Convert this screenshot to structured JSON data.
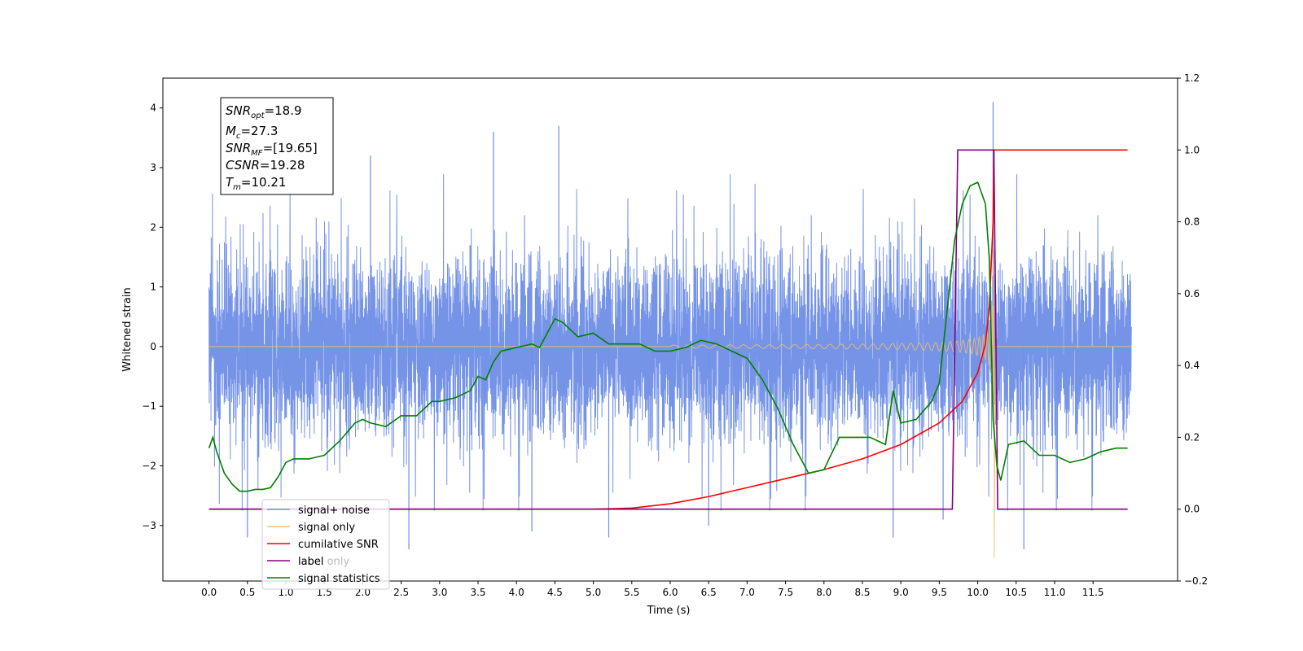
{
  "chart_data": {
    "type": "line",
    "title": "",
    "xlabel": "Time (s)",
    "ylabel_left": "Whitened strain",
    "ylabel_right": "",
    "xlim": [
      -0.6,
      12.6
    ],
    "ylim_left": [
      -3.93,
      4.5
    ],
    "ylim_right": [
      -0.2,
      1.2
    ],
    "x_ticks": [
      0.0,
      0.5,
      1.0,
      1.5,
      2.0,
      2.5,
      3.0,
      3.5,
      4.0,
      4.5,
      5.0,
      5.5,
      6.0,
      6.5,
      7.0,
      7.5,
      8.0,
      8.5,
      9.0,
      9.5,
      10.0,
      10.5,
      11.0,
      11.5
    ],
    "x_tick_labels": [
      "0.0",
      "0.5",
      "1.0",
      "1.5",
      "2.0",
      "2.5",
      "3.0",
      "3.5",
      "4.0",
      "4.5",
      "5.0",
      "5.5",
      "6.0",
      "6.5",
      "7.0",
      "7.5",
      "8.0",
      "8.5",
      "9.0",
      "9.5",
      "10.0",
      "10.5",
      "11.0",
      "11.5"
    ],
    "y_left_ticks": [
      -3,
      -2,
      -1,
      0,
      1,
      2,
      3,
      4
    ],
    "y_left_tick_labels": [
      "−3",
      "−2",
      "−1",
      "0",
      "1",
      "2",
      "3",
      "4"
    ],
    "y_right_ticks": [
      -0.2,
      0.0,
      0.2,
      0.4,
      0.6,
      0.8,
      1.0,
      1.2
    ],
    "y_right_tick_labels": [
      "−0.2",
      "0.0",
      "0.2",
      "0.4",
      "0.6",
      "0.8",
      "1.0",
      "1.2"
    ],
    "grid": false,
    "legend_position": "bottom-left",
    "info_box": {
      "position": "top-left",
      "lines": [
        {
          "base": "SNR",
          "sub": "opt",
          "value": "=18.9"
        },
        {
          "base": "M",
          "sub": "c",
          "value": "=27.3"
        },
        {
          "base": "SNR",
          "sub": "MF",
          "value": "=[19.65]"
        },
        {
          "base": "CSNR",
          "sub": "",
          "value": "=19.28"
        },
        {
          "base": "T",
          "sub": "m",
          "value": "=10.21"
        }
      ]
    },
    "series": [
      {
        "name": "signal+ noise",
        "axis": "left",
        "color": "#6f8ee6",
        "kind": "noise",
        "x_range": [
          0.0,
          12.0
        ],
        "typical_range": [
          -2.0,
          2.0
        ],
        "peak_max": 4.1,
        "peak_min": -3.4,
        "peaks": [
          {
            "x": 0.5,
            "y": -3.2
          },
          {
            "x": 2.1,
            "y": 3.2
          },
          {
            "x": 2.6,
            "y": -3.4
          },
          {
            "x": 3.7,
            "y": 3.6
          },
          {
            "x": 4.2,
            "y": -3.1
          },
          {
            "x": 4.55,
            "y": 3.7
          },
          {
            "x": 5.2,
            "y": -3.2
          },
          {
            "x": 6.5,
            "y": -3.0
          },
          {
            "x": 8.9,
            "y": -3.2
          },
          {
            "x": 9.55,
            "y": -2.9
          },
          {
            "x": 10.2,
            "y": 4.1
          },
          {
            "x": 10.6,
            "y": -3.4
          }
        ]
      },
      {
        "name": "signal only",
        "axis": "left",
        "color": "#f5c06a",
        "kind": "chirp",
        "x_range": [
          0.0,
          12.0
        ],
        "start_x": 6.0,
        "merger_x": 10.21,
        "peak_amplitude": 3.6,
        "peak_min": -3.55
      },
      {
        "name": "cumilative SNR",
        "axis": "right",
        "color": "#ff0000",
        "x": [
          0.0,
          5.0,
          5.5,
          6.0,
          6.5,
          7.0,
          7.5,
          8.0,
          8.5,
          9.0,
          9.5,
          9.8,
          10.0,
          10.1,
          10.15,
          10.2,
          10.21,
          11.95
        ],
        "y": [
          0.0,
          0.0,
          0.003,
          0.015,
          0.035,
          0.06,
          0.085,
          0.11,
          0.14,
          0.18,
          0.24,
          0.3,
          0.38,
          0.46,
          0.56,
          0.8,
          1.0,
          1.0
        ]
      },
      {
        "name": "label",
        "axis": "right",
        "color": "#800080",
        "x": [
          0.0,
          9.67,
          9.74,
          10.21,
          10.26,
          11.95
        ],
        "y": [
          0.0,
          0.0,
          1.0,
          1.0,
          0.0,
          0.0
        ]
      },
      {
        "name": "label only",
        "axis": "right",
        "color": "#bbbbbb",
        "x": [],
        "y": []
      },
      {
        "name": "signal statistics",
        "axis": "right",
        "color": "#008000",
        "x": [
          0.0,
          0.05,
          0.1,
          0.2,
          0.3,
          0.4,
          0.5,
          0.6,
          0.7,
          0.8,
          0.9,
          1.0,
          1.1,
          1.3,
          1.5,
          1.7,
          1.9,
          2.0,
          2.1,
          2.3,
          2.5,
          2.7,
          2.9,
          3.0,
          3.2,
          3.4,
          3.5,
          3.6,
          3.7,
          3.8,
          4.0,
          4.2,
          4.3,
          4.4,
          4.5,
          4.6,
          4.8,
          5.0,
          5.2,
          5.4,
          5.6,
          5.8,
          6.0,
          6.2,
          6.4,
          6.6,
          6.8,
          7.0,
          7.2,
          7.4,
          7.6,
          7.8,
          8.0,
          8.2,
          8.4,
          8.6,
          8.8,
          8.9,
          9.0,
          9.2,
          9.4,
          9.5,
          9.6,
          9.7,
          9.8,
          9.9,
          10.0,
          10.05,
          10.1,
          10.15,
          10.2,
          10.25,
          10.3,
          10.4,
          10.6,
          10.8,
          11.0,
          11.2,
          11.4,
          11.6,
          11.8,
          11.95
        ],
        "y": [
          0.17,
          0.2,
          0.16,
          0.1,
          0.07,
          0.05,
          0.05,
          0.055,
          0.055,
          0.06,
          0.09,
          0.13,
          0.14,
          0.14,
          0.15,
          0.19,
          0.24,
          0.25,
          0.24,
          0.23,
          0.26,
          0.26,
          0.3,
          0.3,
          0.31,
          0.33,
          0.37,
          0.36,
          0.41,
          0.44,
          0.45,
          0.46,
          0.45,
          0.49,
          0.53,
          0.52,
          0.48,
          0.49,
          0.46,
          0.46,
          0.46,
          0.44,
          0.44,
          0.45,
          0.47,
          0.46,
          0.44,
          0.42,
          0.36,
          0.28,
          0.18,
          0.1,
          0.11,
          0.2,
          0.2,
          0.2,
          0.18,
          0.33,
          0.24,
          0.25,
          0.3,
          0.35,
          0.55,
          0.75,
          0.85,
          0.9,
          0.91,
          0.88,
          0.85,
          0.7,
          0.25,
          0.12,
          0.08,
          0.18,
          0.19,
          0.15,
          0.15,
          0.13,
          0.14,
          0.16,
          0.17,
          0.17
        ]
      }
    ]
  }
}
